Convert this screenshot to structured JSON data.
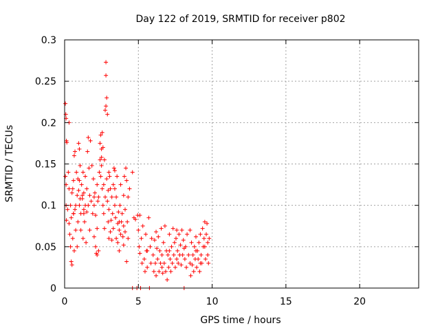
{
  "chart_data": {
    "type": "scatter",
    "title": "Day 122 of 2019, SRMTID for receiver p802",
    "xlabel": "GPS time / hours",
    "ylabel": "SRMTID / TECUs",
    "xlim": [
      0,
      24
    ],
    "ylim": [
      0,
      0.3
    ],
    "xticks": [
      0,
      5,
      10,
      15,
      20
    ],
    "xtick_labels": [
      "0",
      "5",
      "10",
      "15",
      "20"
    ],
    "yticks": [
      0,
      0.05,
      0.1,
      0.15,
      0.2,
      0.25,
      0.3
    ],
    "ytick_labels": [
      "0",
      "0.05",
      "0.1",
      "0.15",
      "0.2",
      "0.25",
      "0.3"
    ],
    "grid": true,
    "marker": "+",
    "color": "#ff0000",
    "series": [
      {
        "name": "SRMTID",
        "points": [
          [
            0.05,
            0.223
          ],
          [
            0.08,
            0.21
          ],
          [
            0.1,
            0.205
          ],
          [
            0.12,
            0.178
          ],
          [
            0.15,
            0.176
          ],
          [
            0.05,
            0.135
          ],
          [
            0.1,
            0.125
          ],
          [
            0.1,
            0.1
          ],
          [
            0.12,
            0.082
          ],
          [
            0.2,
            0.095
          ],
          [
            0.25,
            0.14
          ],
          [
            0.3,
            0.12
          ],
          [
            0.3,
            0.078
          ],
          [
            0.35,
            0.065
          ],
          [
            0.4,
            0.1
          ],
          [
            0.4,
            0.05
          ],
          [
            0.45,
            0.032
          ],
          [
            0.45,
            0.085
          ],
          [
            0.5,
            0.115
          ],
          [
            0.5,
            0.028
          ],
          [
            0.55,
            0.06
          ],
          [
            0.55,
            0.12
          ],
          [
            0.6,
            0.13
          ],
          [
            0.6,
            0.09
          ],
          [
            0.65,
            0.16
          ],
          [
            0.65,
            0.045
          ],
          [
            0.7,
            0.165
          ],
          [
            0.7,
            0.095
          ],
          [
            0.75,
            0.1
          ],
          [
            0.75,
            0.07
          ],
          [
            0.8,
            0.14
          ],
          [
            0.85,
            0.112
          ],
          [
            0.85,
            0.05
          ],
          [
            0.9,
            0.132
          ],
          [
            0.9,
            0.08
          ],
          [
            0.95,
            0.175
          ],
          [
            0.95,
            0.118
          ],
          [
            1.0,
            0.168
          ],
          [
            1.0,
            0.1
          ],
          [
            1.05,
            0.108
          ],
          [
            1.05,
            0.148
          ],
          [
            1.1,
            0.09
          ],
          [
            1.1,
            0.07
          ],
          [
            1.15,
            0.125
          ],
          [
            1.2,
            0.108
          ],
          [
            1.2,
            0.112
          ],
          [
            1.25,
            0.14
          ],
          [
            1.25,
            0.06
          ],
          [
            1.3,
            0.115
          ],
          [
            1.3,
            0.095
          ],
          [
            1.35,
            0.08
          ],
          [
            1.4,
            0.135
          ],
          [
            1.4,
            0.1
          ],
          [
            1.45,
            0.055
          ],
          [
            1.5,
            0.12
          ],
          [
            1.5,
            0.092
          ],
          [
            1.55,
            0.165
          ],
          [
            1.6,
            0.182
          ],
          [
            1.65,
            0.145
          ],
          [
            1.7,
            0.112
          ],
          [
            1.7,
            0.07
          ],
          [
            1.75,
            0.178
          ],
          [
            1.8,
            0.105
          ],
          [
            1.85,
            0.148
          ],
          [
            1.9,
            0.09
          ],
          [
            1.95,
            0.132
          ],
          [
            2.0,
            0.1
          ],
          [
            2.0,
            0.062
          ],
          [
            2.05,
            0.115
          ],
          [
            2.1,
            0.05
          ],
          [
            2.1,
            0.088
          ],
          [
            2.15,
            0.042
          ],
          [
            2.2,
            0.125
          ],
          [
            2.2,
            0.072
          ],
          [
            2.25,
            0.105
          ],
          [
            2.3,
            0.045
          ],
          [
            2.3,
            0.11
          ],
          [
            2.35,
            0.14
          ],
          [
            2.4,
            0.175
          ],
          [
            2.4,
            0.155
          ],
          [
            2.45,
            0.185
          ],
          [
            2.45,
            0.135
          ],
          [
            2.5,
            0.168
          ],
          [
            2.5,
            0.148
          ],
          [
            2.55,
            0.188
          ],
          [
            2.55,
            0.12
          ],
          [
            2.6,
            0.17
          ],
          [
            2.6,
            0.1
          ],
          [
            2.65,
            0.125
          ],
          [
            2.65,
            0.09
          ],
          [
            2.7,
            0.072
          ],
          [
            2.7,
            0.155
          ],
          [
            2.75,
            0.215
          ],
          [
            2.75,
            0.11
          ],
          [
            2.8,
            0.22
          ],
          [
            2.8,
            0.257
          ],
          [
            2.8,
            0.273
          ],
          [
            2.85,
            0.23
          ],
          [
            2.85,
            0.132
          ],
          [
            2.9,
            0.21
          ],
          [
            2.9,
            0.105
          ],
          [
            2.95,
            0.08
          ],
          [
            2.95,
            0.118
          ],
          [
            3.0,
            0.14
          ],
          [
            3.0,
            0.095
          ],
          [
            3.05,
            0.135
          ],
          [
            3.1,
            0.068
          ],
          [
            3.1,
            0.12
          ],
          [
            3.15,
            0.082
          ],
          [
            3.2,
            0.11
          ],
          [
            3.2,
            0.058
          ],
          [
            3.25,
            0.09
          ],
          [
            3.3,
            0.125
          ],
          [
            3.3,
            0.072
          ],
          [
            3.35,
            0.145
          ],
          [
            3.4,
            0.12
          ],
          [
            3.4,
            0.1
          ],
          [
            3.45,
            0.085
          ],
          [
            3.5,
            0.06
          ],
          [
            3.5,
            0.11
          ],
          [
            3.55,
            0.135
          ],
          [
            3.6,
            0.078
          ],
          [
            3.6,
            0.055
          ],
          [
            3.65,
            0.092
          ],
          [
            3.7,
            0.045
          ],
          [
            3.7,
            0.07
          ],
          [
            3.75,
            0.1
          ],
          [
            3.8,
            0.065
          ],
          [
            3.8,
            0.125
          ],
          [
            3.85,
            0.08
          ],
          [
            3.9,
            0.09
          ],
          [
            3.95,
            0.062
          ],
          [
            4.0,
            0.112
          ],
          [
            4.0,
            0.075
          ],
          [
            4.05,
            0.135
          ],
          [
            4.1,
            0.068
          ],
          [
            4.1,
            0.095
          ],
          [
            4.15,
            0.145
          ],
          [
            4.2,
            0.032
          ],
          [
            4.25,
            0.08
          ],
          [
            4.3,
            0.06
          ],
          [
            4.3,
            0.11
          ],
          [
            4.4,
            0.12
          ],
          [
            4.6,
            0.14
          ],
          [
            4.6,
            0.0
          ],
          [
            4.7,
            0.085
          ],
          [
            4.8,
            0.083
          ],
          [
            4.9,
            0.0
          ],
          [
            4.95,
            0.088
          ],
          [
            5.0,
            0.07
          ],
          [
            5.05,
            0.05
          ],
          [
            5.1,
            0.042
          ],
          [
            5.15,
            0.0
          ],
          [
            5.2,
            0.06
          ],
          [
            5.25,
            0.03
          ],
          [
            5.3,
            0.075
          ],
          [
            5.4,
            0.035
          ],
          [
            5.45,
            0.02
          ],
          [
            5.5,
            0.065
          ],
          [
            5.55,
            0.045
          ],
          [
            5.6,
            0.025
          ],
          [
            5.7,
            0.085
          ],
          [
            5.75,
            0.0
          ],
          [
            5.8,
            0.05
          ],
          [
            5.85,
            0.03
          ],
          [
            5.9,
            0.06
          ],
          [
            6.0,
            0.04
          ],
          [
            6.05,
            0.02
          ],
          [
            6.1,
            0.058
          ],
          [
            6.15,
            0.03
          ],
          [
            6.2,
            0.015
          ],
          [
            6.25,
            0.048
          ],
          [
            6.3,
            0.035
          ],
          [
            6.35,
            0.062
          ],
          [
            6.4,
            0.02
          ],
          [
            6.45,
            0.045
          ],
          [
            6.5,
            0.03
          ],
          [
            6.55,
            0.072
          ],
          [
            6.6,
            0.04
          ],
          [
            6.65,
            0.018
          ],
          [
            6.7,
            0.055
          ],
          [
            6.75,
            0.03
          ],
          [
            6.8,
            0.075
          ],
          [
            6.85,
            0.02
          ],
          [
            6.9,
            0.045
          ],
          [
            6.95,
            0.01
          ],
          [
            7.0,
            0.04
          ],
          [
            7.05,
            0.025
          ],
          [
            7.1,
            0.065
          ],
          [
            7.15,
            0.035
          ],
          [
            7.2,
            0.02
          ],
          [
            7.25,
            0.05
          ],
          [
            7.3,
            0.03
          ],
          [
            7.35,
            0.072
          ],
          [
            7.4,
            0.04
          ],
          [
            7.45,
            0.055
          ],
          [
            7.5,
            0.025
          ],
          [
            7.55,
            0.06
          ],
          [
            7.6,
            0.035
          ],
          [
            7.65,
            0.045
          ],
          [
            7.7,
            0.03
          ],
          [
            7.75,
            0.065
          ],
          [
            7.8,
            0.04
          ],
          [
            7.85,
            0.052
          ],
          [
            7.9,
            0.028
          ],
          [
            7.95,
            0.07
          ],
          [
            8.0,
            0.04
          ],
          [
            8.05,
            0.058
          ],
          [
            8.1,
            0.0
          ],
          [
            8.15,
            0.035
          ],
          [
            8.2,
            0.05
          ],
          [
            8.25,
            0.025
          ],
          [
            8.3,
            0.065
          ],
          [
            8.4,
            0.04
          ],
          [
            8.5,
            0.03
          ],
          [
            8.55,
            0.015
          ],
          [
            8.6,
            0.055
          ],
          [
            8.65,
            0.028
          ],
          [
            8.7,
            0.04
          ],
          [
            8.75,
            0.02
          ],
          [
            8.8,
            0.05
          ],
          [
            8.85,
            0.035
          ],
          [
            8.9,
            0.062
          ],
          [
            8.95,
            0.025
          ],
          [
            9.0,
            0.045
          ],
          [
            9.05,
            0.035
          ],
          [
            9.1,
            0.055
          ],
          [
            9.15,
            0.02
          ],
          [
            9.2,
            0.065
          ],
          [
            9.25,
            0.04
          ],
          [
            9.3,
            0.03
          ],
          [
            9.35,
            0.072
          ],
          [
            9.4,
            0.05
          ],
          [
            9.45,
            0.06
          ],
          [
            9.5,
            0.08
          ],
          [
            9.55,
            0.035
          ],
          [
            9.6,
            0.065
          ],
          [
            9.65,
            0.078
          ],
          [
            9.7,
            0.055
          ],
          [
            9.75,
            0.03
          ],
          [
            9.8,
            0.06
          ],
          [
            0.3,
            0.2
          ],
          [
            0.6,
            0.09
          ],
          [
            1.0,
            0.13
          ],
          [
            1.3,
            0.09
          ],
          [
            1.6,
            0.1
          ],
          [
            2.0,
            0.11
          ],
          [
            2.2,
            0.04
          ],
          [
            2.5,
            0.158
          ],
          [
            3.0,
            0.06
          ],
          [
            3.4,
            0.142
          ],
          [
            3.7,
            0.08
          ],
          [
            4.0,
            0.052
          ],
          [
            4.2,
            0.13
          ],
          [
            5.1,
            0.088
          ],
          [
            5.6,
            0.045
          ],
          [
            6.2,
            0.068
          ],
          [
            6.6,
            0.025
          ],
          [
            7.1,
            0.045
          ],
          [
            7.6,
            0.07
          ],
          [
            8.1,
            0.048
          ],
          [
            8.5,
            0.07
          ],
          [
            8.9,
            0.045
          ],
          [
            9.2,
            0.03
          ],
          [
            9.5,
            0.05
          ],
          [
            9.7,
            0.04
          ]
        ]
      }
    ]
  }
}
